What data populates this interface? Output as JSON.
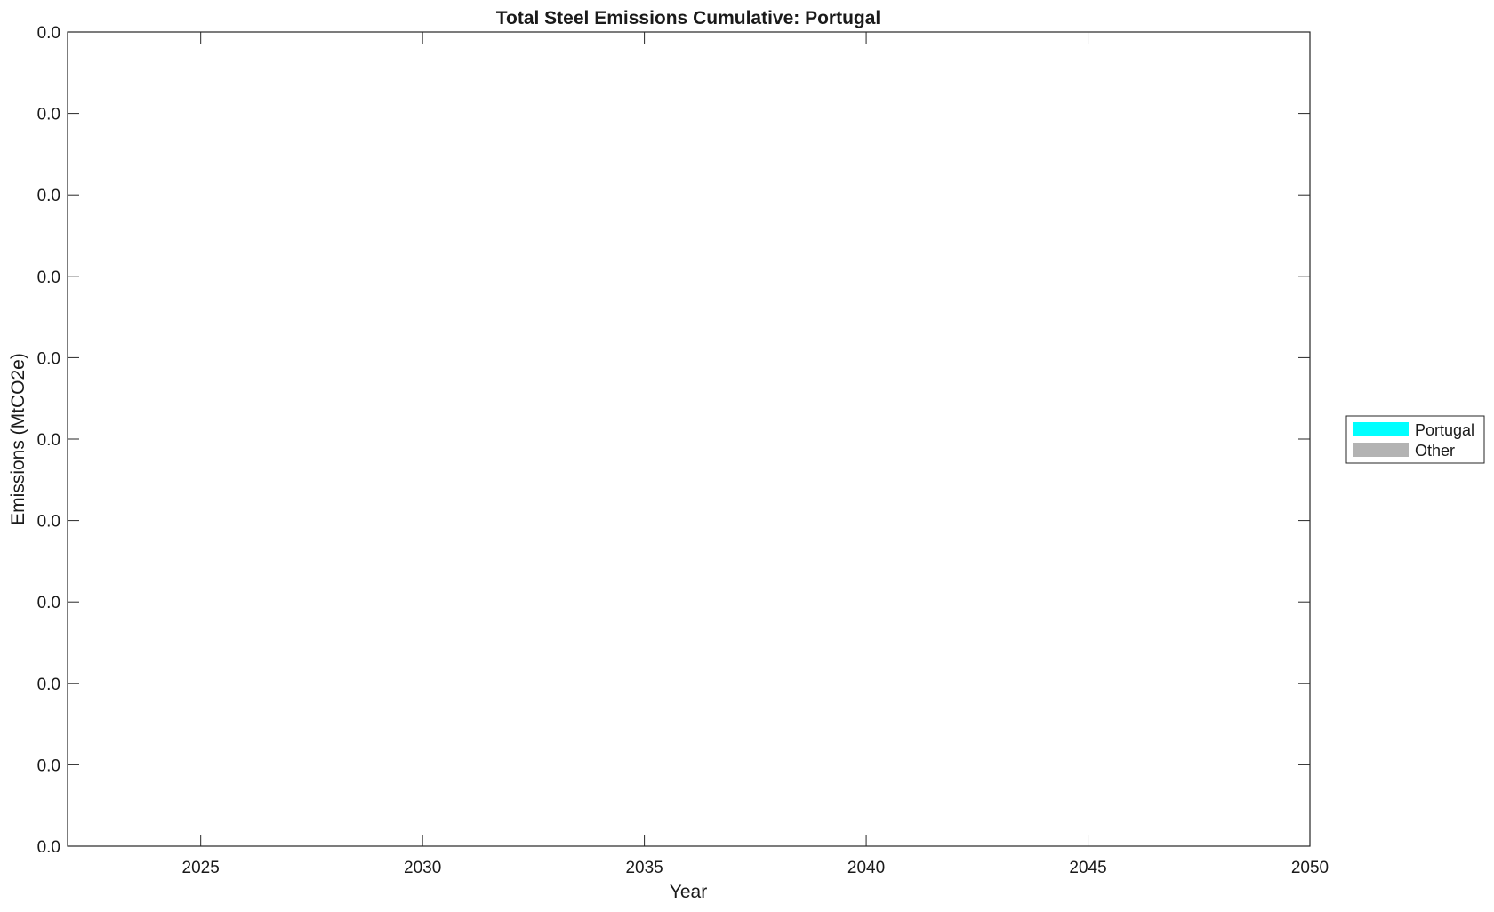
{
  "chart_data": {
    "type": "area",
    "title": "Total Steel Emissions Cumulative: Portugal",
    "xlabel": "Year",
    "ylabel": "Emissions (MtCO2e)",
    "xlim": [
      2022,
      2050
    ],
    "x_ticks": [
      2025,
      2030,
      2035,
      2040,
      2045,
      2050
    ],
    "y_tick_labels": [
      "0.0",
      "0.0",
      "0.0",
      "0.0",
      "0.0",
      "0.0",
      "0.0",
      "0.0",
      "0.0",
      "0.0",
      "0.0"
    ],
    "grid": false,
    "legend_placement": "right",
    "series": [
      {
        "name": "Portugal",
        "color": "#00ffff",
        "values": []
      },
      {
        "name": "Other",
        "color": "#b3b3b3",
        "values": []
      }
    ]
  }
}
